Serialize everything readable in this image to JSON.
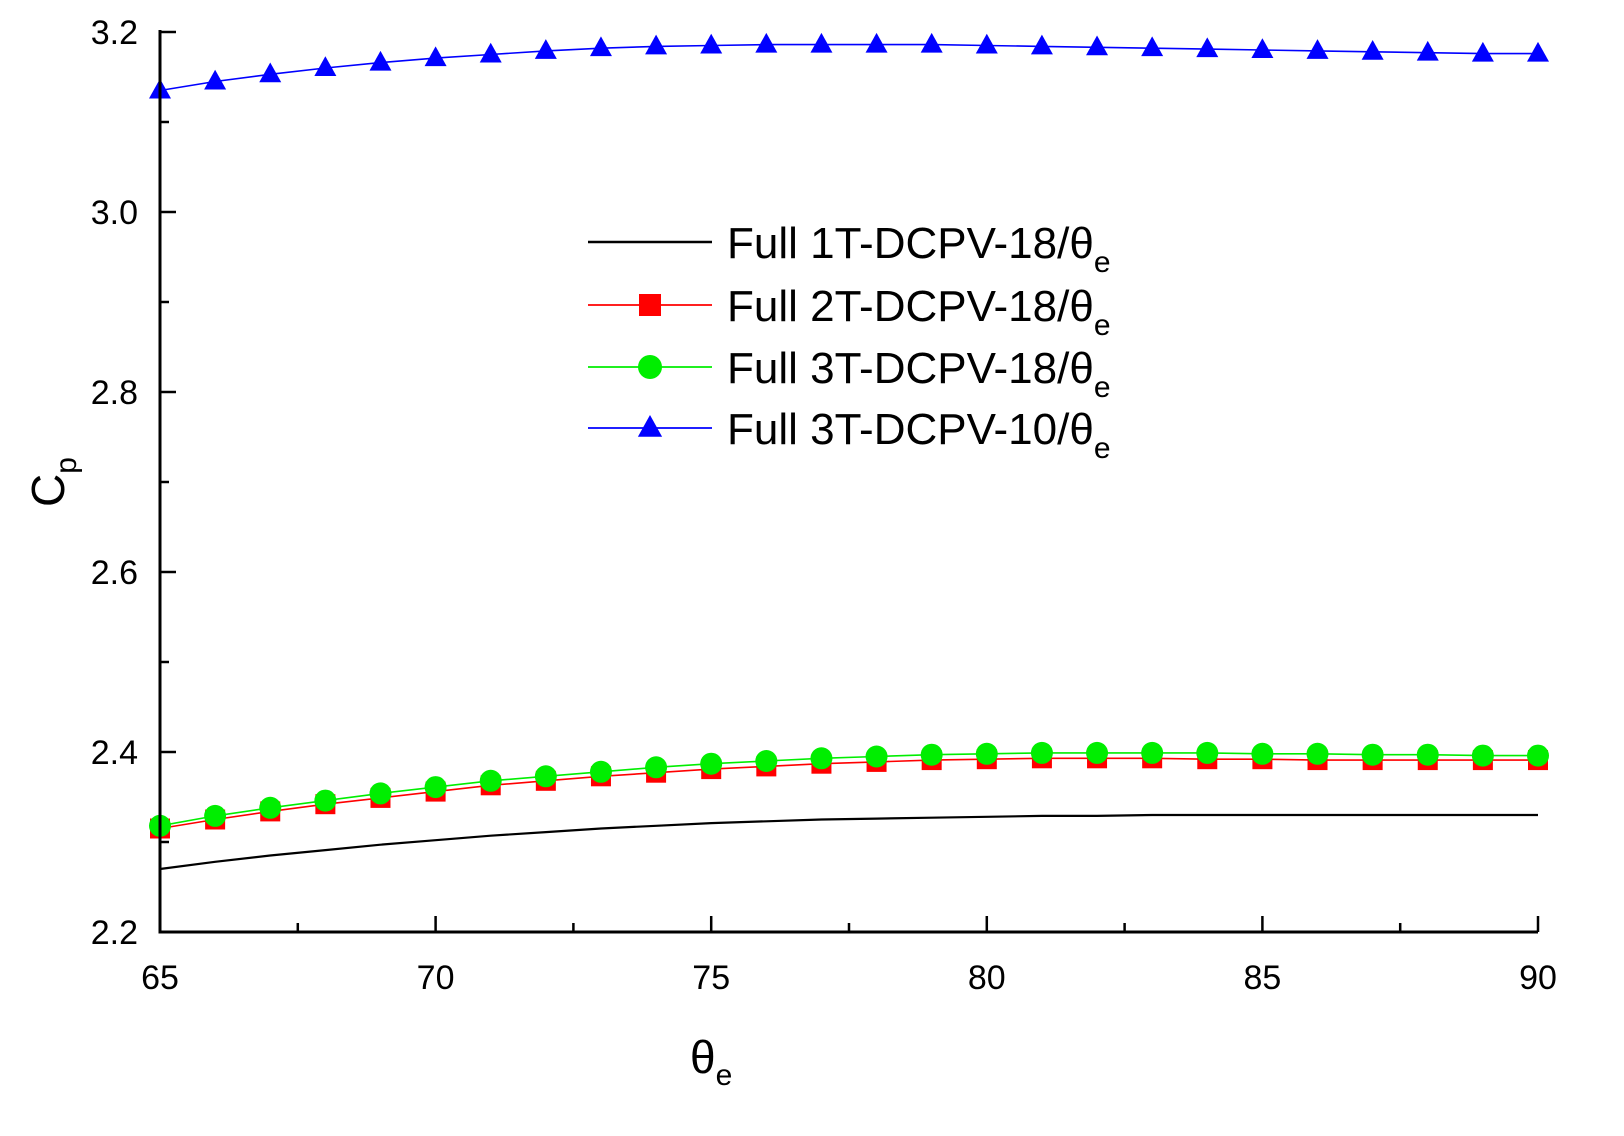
{
  "chart_data": {
    "type": "line",
    "title": "",
    "xlabel": {
      "main": "θ",
      "sub": "e"
    },
    "ylabel": {
      "main": "C",
      "sub": "p"
    },
    "xlim": [
      65,
      90
    ],
    "ylim": [
      2.2,
      3.2
    ],
    "xticks": [
      65,
      70,
      75,
      80,
      85,
      90
    ],
    "xtick_labels": [
      "65",
      "70",
      "75",
      "80",
      "85",
      "90"
    ],
    "yticks": [
      2.2,
      2.4,
      2.6,
      2.8,
      3.0,
      3.2
    ],
    "ytick_labels": [
      "2.2",
      "2.4",
      "2.6",
      "2.8",
      "3.0",
      "3.2"
    ],
    "x": [
      65,
      66,
      67,
      68,
      69,
      70,
      71,
      72,
      73,
      74,
      75,
      76,
      77,
      78,
      79,
      80,
      81,
      82,
      83,
      84,
      85,
      86,
      87,
      88,
      89,
      90
    ],
    "legend_position": "center",
    "series": [
      {
        "name": "Full 1T-DCPV-18/θ",
        "name_sub": "e",
        "color": "#000000",
        "marker": "none",
        "values": [
          2.27,
          2.278,
          2.285,
          2.291,
          2.297,
          2.302,
          2.307,
          2.311,
          2.315,
          2.318,
          2.321,
          2.323,
          2.325,
          2.326,
          2.327,
          2.328,
          2.329,
          2.329,
          2.33,
          2.33,
          2.33,
          2.33,
          2.33,
          2.33,
          2.33,
          2.33
        ]
      },
      {
        "name": "Full 2T-DCPV-18/θ",
        "name_sub": "e",
        "color": "#ff0000",
        "marker": "square",
        "values": [
          2.315,
          2.325,
          2.334,
          2.342,
          2.349,
          2.356,
          2.363,
          2.368,
          2.373,
          2.377,
          2.381,
          2.384,
          2.387,
          2.389,
          2.391,
          2.392,
          2.393,
          2.393,
          2.393,
          2.392,
          2.392,
          2.391,
          2.391,
          2.391,
          2.391,
          2.391
        ]
      },
      {
        "name": "Full 3T-DCPV-18/θ",
        "name_sub": "e",
        "color": "#00ee00",
        "marker": "circle",
        "values": [
          2.318,
          2.329,
          2.338,
          2.346,
          2.354,
          2.361,
          2.368,
          2.373,
          2.378,
          2.383,
          2.387,
          2.39,
          2.393,
          2.395,
          2.397,
          2.398,
          2.399,
          2.399,
          2.399,
          2.399,
          2.398,
          2.398,
          2.397,
          2.397,
          2.396,
          2.396
        ]
      },
      {
        "name": "Full 3T-DCPV-10/θ",
        "name_sub": "e",
        "color": "#0000ff",
        "marker": "triangle",
        "values": [
          3.135,
          3.145,
          3.153,
          3.16,
          3.166,
          3.171,
          3.175,
          3.179,
          3.182,
          3.184,
          3.185,
          3.186,
          3.186,
          3.186,
          3.186,
          3.185,
          3.184,
          3.183,
          3.182,
          3.181,
          3.18,
          3.179,
          3.178,
          3.177,
          3.176,
          3.176
        ]
      }
    ]
  }
}
